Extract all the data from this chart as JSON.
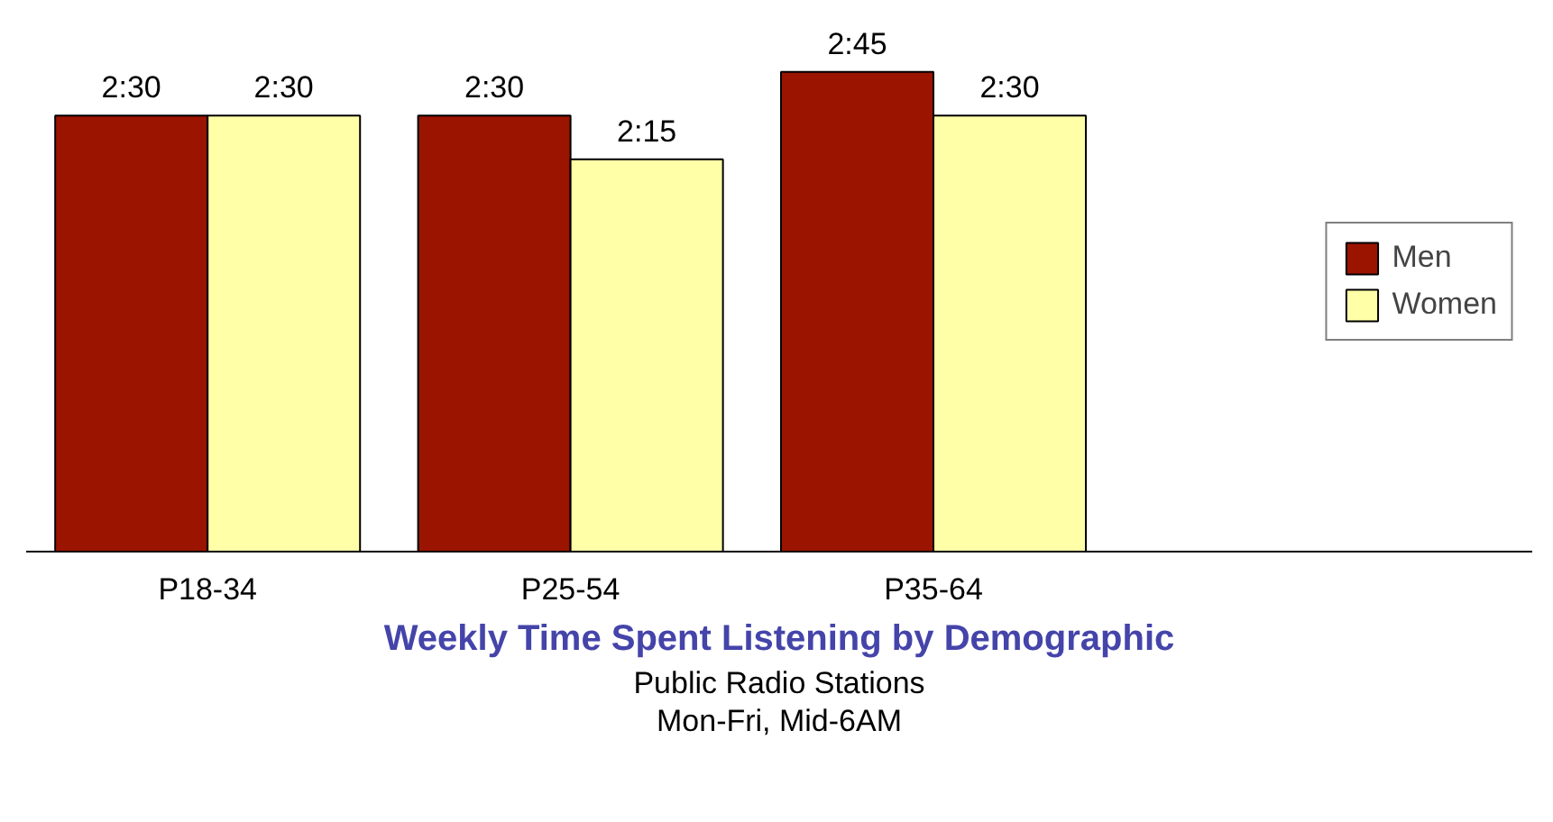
{
  "chart_data": {
    "type": "bar",
    "title": "Weekly Time Spent Listening by Demographic",
    "subtitle": "Public Radio Stations\nMon-Fri, Mid-6AM",
    "categories": [
      "P18-34",
      "P25-54",
      "P35-64"
    ],
    "series": [
      {
        "name": "Men",
        "color": "#9b1400",
        "values": [
          2.5,
          2.5,
          2.75
        ],
        "value_labels": [
          "2:30",
          "2:30",
          "2:45"
        ]
      },
      {
        "name": "Women",
        "color": "#ffffa8",
        "values": [
          2.5,
          2.25,
          2.5
        ],
        "value_labels": [
          "2:30",
          "2:15",
          "2:30"
        ]
      }
    ],
    "tick_labels": "x",
    "grid": false,
    "legend": "right"
  }
}
